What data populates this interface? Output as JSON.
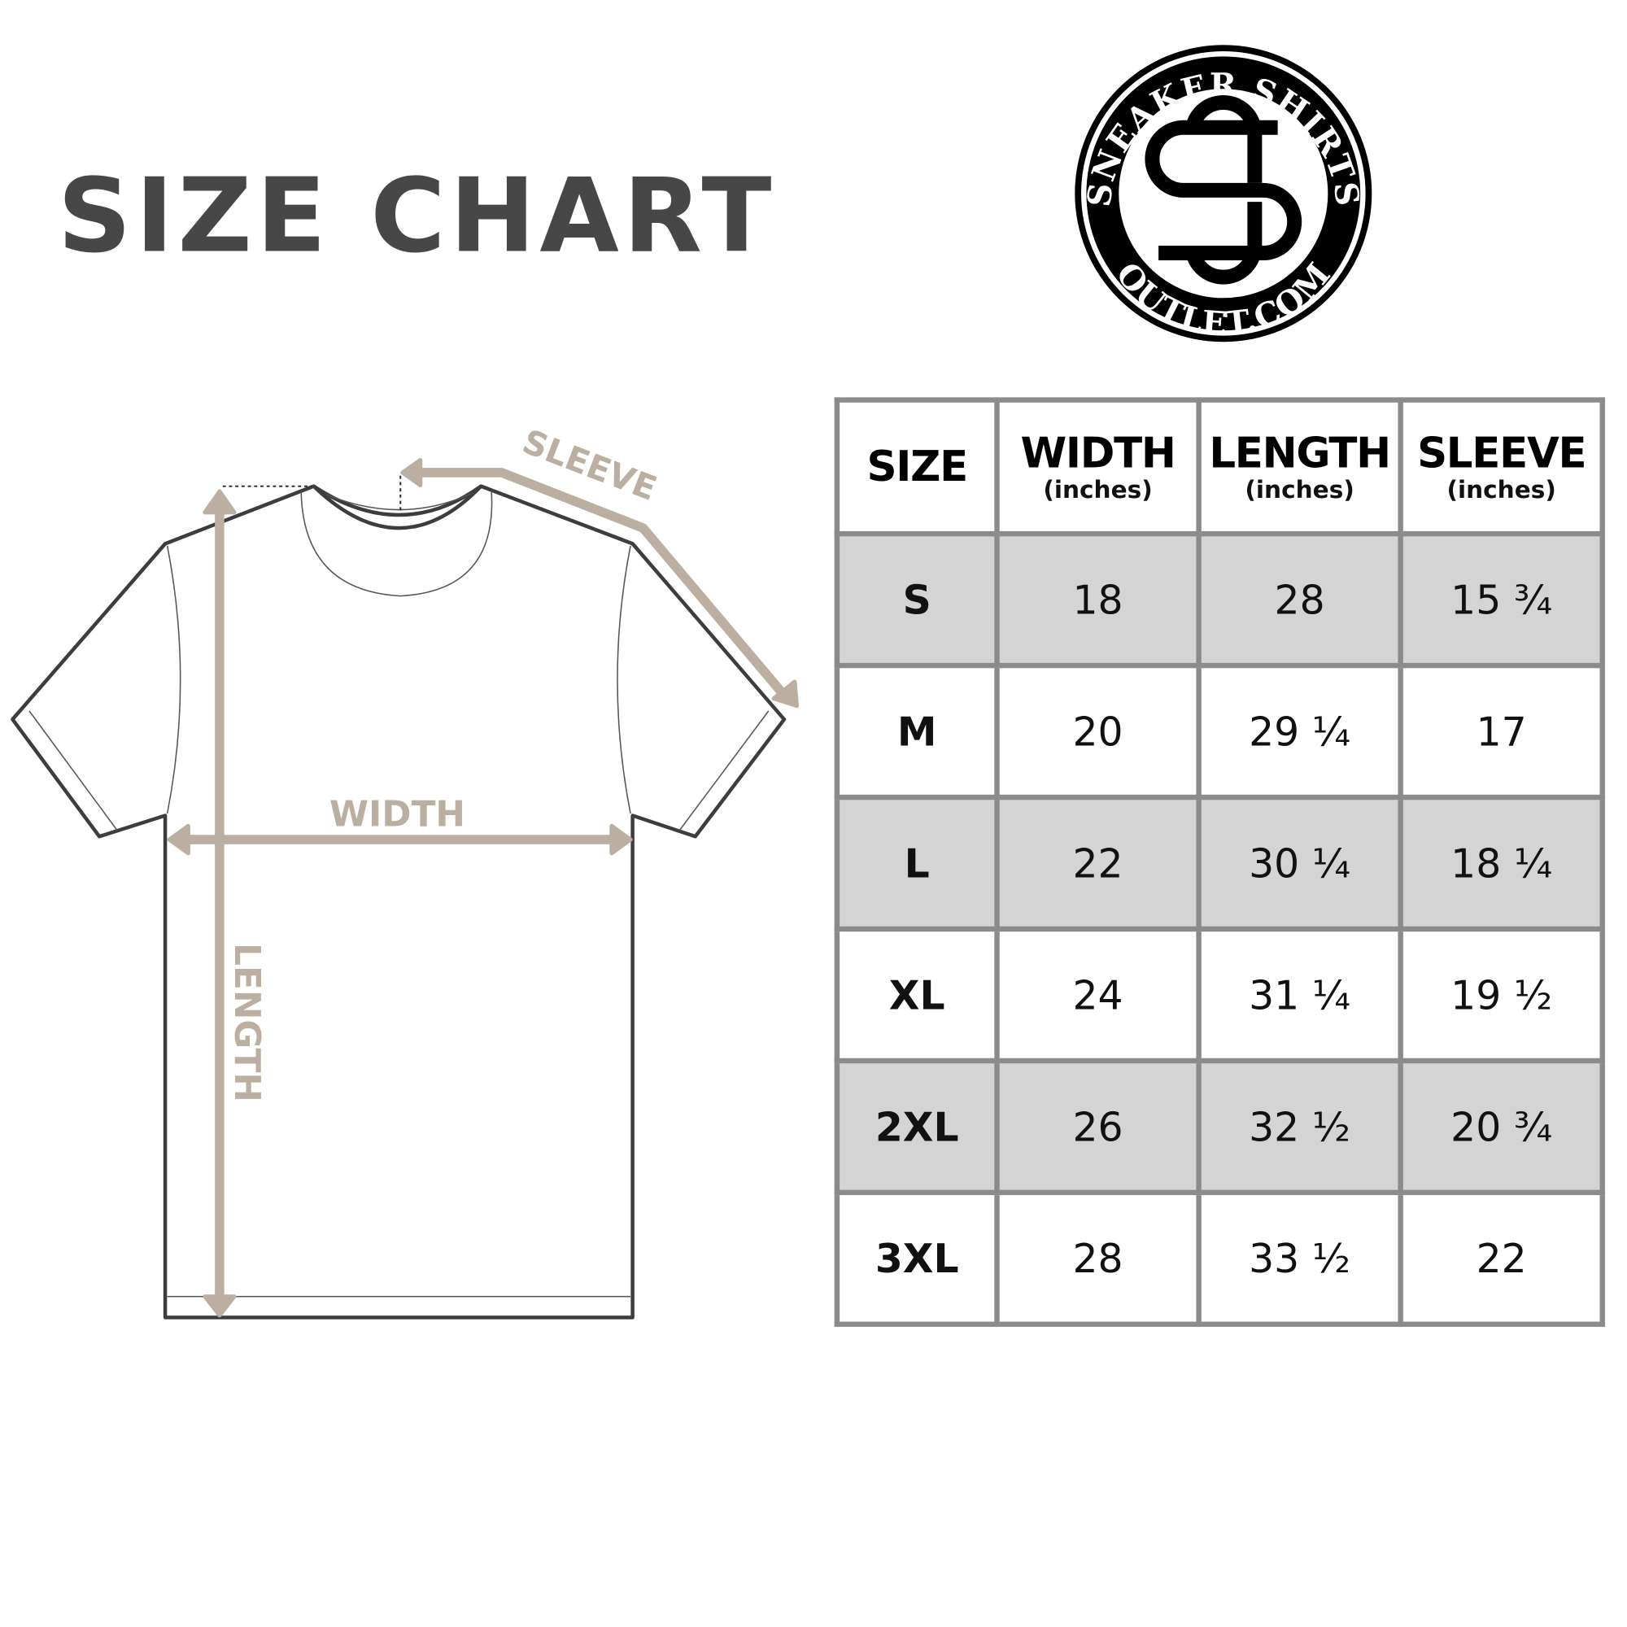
{
  "title": "SIZE CHART",
  "logo": {
    "top_text": "SNEAKER SHIRTS",
    "bottom_text": "OUTLET.COM",
    "monogram": "SO"
  },
  "diagram": {
    "sleeve_label": "SLEEVE",
    "width_label": "WIDTH",
    "length_label": "LENGTH",
    "accent_color": "#bbafa1"
  },
  "table": {
    "headers": [
      {
        "main": "SIZE",
        "sub": ""
      },
      {
        "main": "WIDTH",
        "sub": "(inches)"
      },
      {
        "main": "LENGTH",
        "sub": "(inches)"
      },
      {
        "main": "SLEEVE",
        "sub": "(inches)"
      }
    ],
    "rows": [
      [
        "S",
        "18",
        "28",
        "15 ¾"
      ],
      [
        "M",
        "20",
        "29 ¼",
        "17"
      ],
      [
        "L",
        "22",
        "30 ¼",
        "18 ¼"
      ],
      [
        "XL",
        "24",
        "31 ¼",
        "19 ½"
      ],
      [
        "2XL",
        "26",
        "32 ½",
        "20 ¾"
      ],
      [
        "3XL",
        "28",
        "33 ½",
        "22"
      ]
    ]
  }
}
